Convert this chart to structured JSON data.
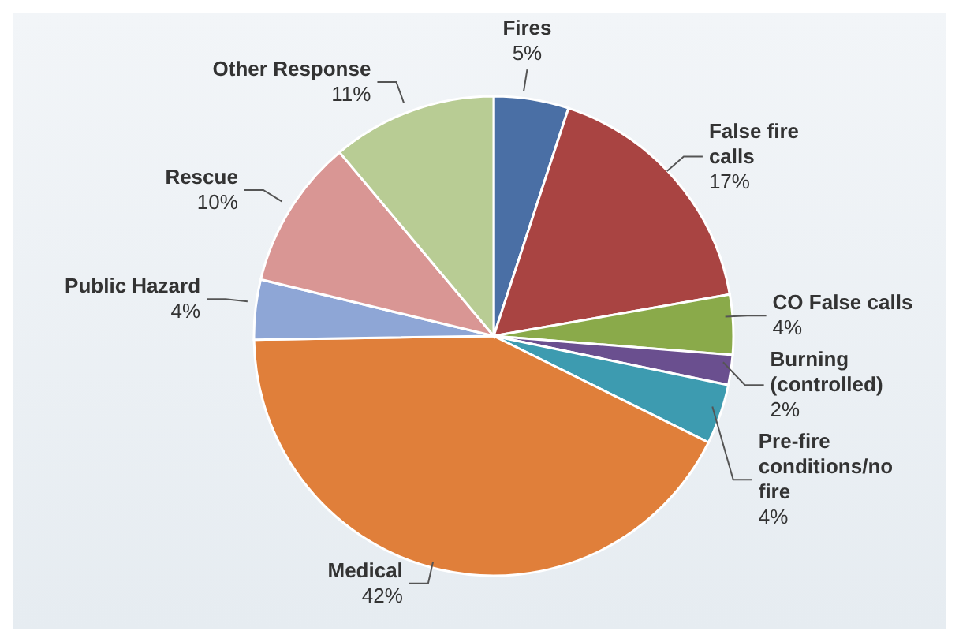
{
  "chart_data": {
    "type": "pie",
    "categories": [
      "Fires",
      "False fire calls",
      "CO False calls",
      "Burning (controlled)",
      "Pre-fire conditions/no fire",
      "Medical",
      "Public Hazard",
      "Rescue",
      "Other Response"
    ],
    "values": [
      5,
      17,
      4,
      2,
      4,
      42,
      4,
      10,
      11
    ],
    "value_labels": [
      "5%",
      "17%",
      "4%",
      "2%",
      "4%",
      "42%",
      "4%",
      "10%",
      "11%"
    ],
    "colors": [
      "#4a6fa5",
      "#a94442",
      "#8aaa4a",
      "#6a4f8f",
      "#3d9bb0",
      "#e07f3a",
      "#8ea6d6",
      "#d99694",
      "#b8cc94"
    ],
    "legend": false
  }
}
